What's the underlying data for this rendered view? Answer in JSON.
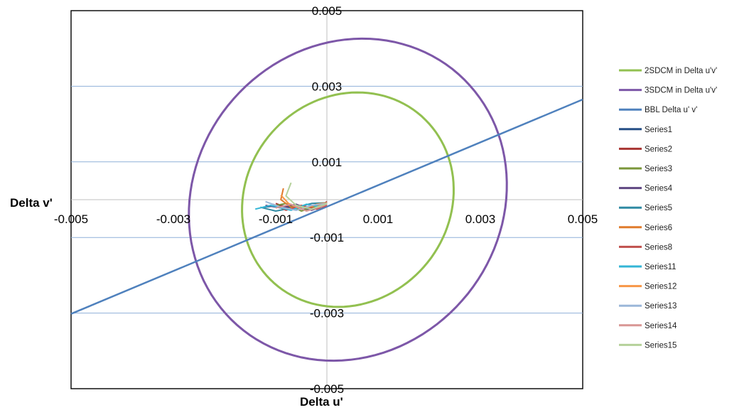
{
  "chart_data": {
    "type": "scatter",
    "title": "",
    "xlabel": "Delta u'",
    "ylabel": "Delta v'",
    "xlim": [
      -0.005,
      0.005
    ],
    "ylim": [
      -0.005,
      0.005
    ],
    "x_ticks": [
      "-0.005",
      "-0.003",
      "-0.001",
      "0.001",
      "0.003",
      "0.005"
    ],
    "x_tick_values": [
      -0.005,
      -0.003,
      -0.001,
      0.001,
      0.003,
      0.005
    ],
    "y_ticks": [
      "0.005",
      "0.003",
      "0.001",
      "-0.001",
      "-0.003",
      "-0.005"
    ],
    "y_tick_values": [
      0.005,
      0.003,
      0.001,
      -0.001,
      -0.003,
      -0.005
    ],
    "gridlines_y": [
      0.003,
      0.001,
      -0.001,
      -0.003
    ],
    "grid": true,
    "legend_position": "right",
    "series": [
      {
        "name": "2SDCM in Delta u'v'",
        "color": "#92c050",
        "kind": "ellipse",
        "center": [
          0.00041,
          0.0
        ],
        "semi_x": 0.00205,
        "semi_y": 0.00285,
        "rotation_deg": -8
      },
      {
        "name": "3SDCM in Delta u'v'",
        "color": "#7d57a8",
        "kind": "ellipse",
        "center": [
          0.00041,
          0.0
        ],
        "semi_x": 0.00308,
        "semi_y": 0.00428,
        "rotation_deg": -8
      },
      {
        "name": "BBL Delta u' v'",
        "color": "#4f81bd",
        "kind": "line",
        "points": [
          [
            -0.005,
            -0.00302
          ],
          [
            0.005,
            0.00265
          ]
        ]
      },
      {
        "name": "Series1",
        "color": "#254f86",
        "points": [
          [
            -0.00125,
            -0.0002
          ],
          [
            -0.0009,
            -0.00015
          ],
          [
            -0.0005,
            -0.00025
          ],
          [
            -0.0002,
            -0.0002
          ],
          [
            0.0,
            -0.0001
          ]
        ]
      },
      {
        "name": "Series2",
        "color": "#a83432",
        "points": [
          [
            -0.001,
            -0.0001
          ],
          [
            -0.0007,
            -0.00025
          ],
          [
            -0.0004,
            -0.0002
          ],
          [
            -0.0001,
            -0.00015
          ],
          [
            0.0,
            -5e-05
          ]
        ]
      },
      {
        "name": "Series3",
        "color": "#7a963a",
        "points": [
          [
            -0.0011,
            -0.00018
          ],
          [
            -0.0008,
            -0.0001
          ],
          [
            -0.0005,
            -0.0003
          ],
          [
            -0.0002,
            -0.00018
          ],
          [
            0.0,
            -0.0001
          ]
        ]
      },
      {
        "name": "Series4",
        "color": "#5f4782",
        "points": [
          [
            -0.0012,
            -0.00015
          ],
          [
            -0.0009,
            -0.00022
          ],
          [
            -0.0006,
            -0.00012
          ],
          [
            -0.0003,
            -0.00028
          ],
          [
            0.0,
            -0.00012
          ]
        ]
      },
      {
        "name": "Series5",
        "color": "#2f8aa3",
        "points": [
          [
            -0.0013,
            -0.0002
          ],
          [
            -0.001,
            -0.0003
          ],
          [
            -0.0006,
            -0.0002
          ],
          [
            -0.0003,
            -0.0001
          ],
          [
            0.0,
            -8e-05
          ]
        ]
      },
      {
        "name": "Series6",
        "color": "#e07b2c",
        "points": [
          [
            -0.00085,
            0.0003
          ],
          [
            -0.0009,
            0.0
          ],
          [
            -0.0007,
            -0.0002
          ],
          [
            -0.0004,
            -0.00022
          ],
          [
            -0.0001,
            -0.00012
          ]
        ]
      },
      {
        "name": "Series8",
        "color": "#c0504d",
        "points": [
          [
            -0.00105,
            -0.00012
          ],
          [
            -0.0008,
            -0.00028
          ],
          [
            -0.0005,
            -0.00015
          ],
          [
            -0.0002,
            -0.00025
          ],
          [
            0.0,
            -0.00015
          ]
        ]
      },
      {
        "name": "Series11",
        "color": "#33b5d6",
        "points": [
          [
            -0.0014,
            -0.00025
          ],
          [
            -0.0011,
            -0.00015
          ],
          [
            -0.0007,
            -0.00028
          ],
          [
            -0.0004,
            -0.00012
          ],
          [
            -0.0001,
            -0.0002
          ]
        ]
      },
      {
        "name": "Series12",
        "color": "#f79646",
        "points": [
          [
            -0.0009,
            0.00012
          ],
          [
            -0.00075,
            -0.0001
          ],
          [
            -0.0005,
            -0.00025
          ],
          [
            -0.0002,
            -0.00012
          ],
          [
            0.0,
            -8e-05
          ]
        ]
      },
      {
        "name": "Series13",
        "color": "#9bb7d9",
        "points": [
          [
            -0.0012,
            -5e-05
          ],
          [
            -0.0009,
            -0.0002
          ],
          [
            -0.0006,
            -0.00028
          ],
          [
            -0.0003,
            -0.00015
          ],
          [
            0.0,
            -0.0001
          ]
        ]
      },
      {
        "name": "Series14",
        "color": "#d99694",
        "points": [
          [
            -0.001,
            -0.00022
          ],
          [
            -0.0007,
            -0.00012
          ],
          [
            -0.0004,
            -0.0003
          ],
          [
            -0.0001,
            -0.00018
          ],
          [
            0.0,
            -0.00012
          ]
        ]
      },
      {
        "name": "Series15",
        "color": "#b5d19a",
        "points": [
          [
            -0.0007,
            0.00045
          ],
          [
            -0.0008,
            0.0001
          ],
          [
            -0.0006,
            -0.00015
          ],
          [
            -0.0003,
            -0.00025
          ],
          [
            0.0,
            -0.0001
          ]
        ]
      }
    ]
  }
}
